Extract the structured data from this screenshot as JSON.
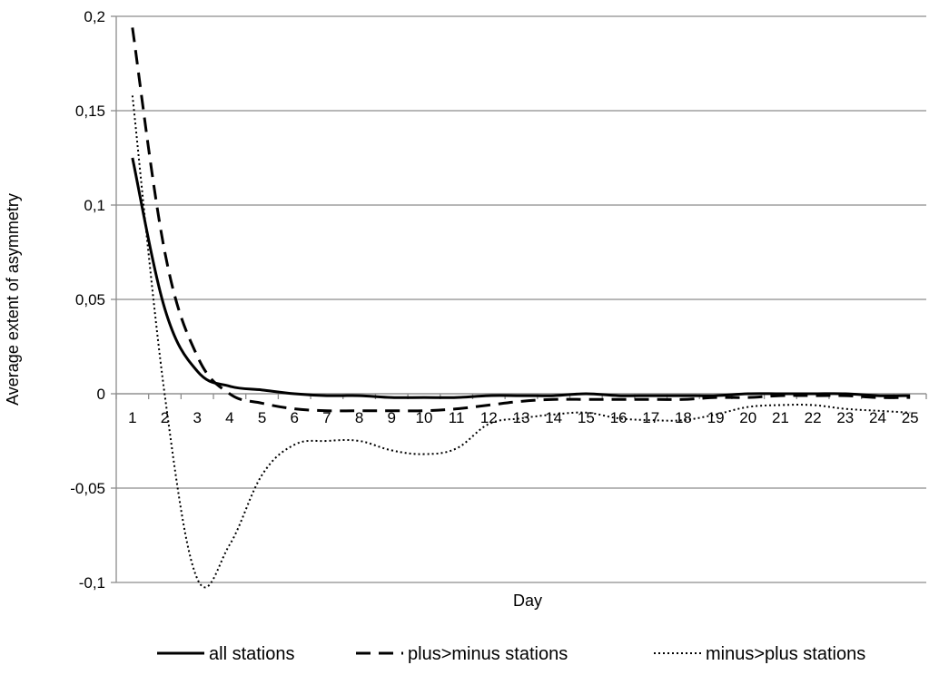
{
  "chart_data": {
    "type": "line",
    "title": "",
    "xlabel": "Day",
    "ylabel": "Average extent of asymmetry",
    "categories": [
      "1",
      "2",
      "3",
      "4",
      "5",
      "6",
      "7",
      "8",
      "9",
      "10",
      "11",
      "12",
      "13",
      "14",
      "15",
      "16",
      "17",
      "18",
      "19",
      "20",
      "21",
      "22",
      "23",
      "24",
      "25"
    ],
    "yticks": [
      "0,2",
      "0,15",
      "0,1",
      "0,05",
      "0",
      "-0,05",
      "-0,1"
    ],
    "ytick_values": [
      0.2,
      0.15,
      0.1,
      0.05,
      0,
      -0.05,
      -0.1
    ],
    "ylim": [
      -0.1,
      0.2
    ],
    "grid": true,
    "legend_position": "bottom",
    "series": [
      {
        "name": "all stations",
        "style": "solid",
        "values": [
          0.125,
          0.045,
          0.012,
          0.004,
          0.002,
          0.0,
          -0.001,
          -0.001,
          -0.002,
          -0.002,
          -0.002,
          -0.001,
          -0.001,
          -0.001,
          0.0,
          -0.001,
          -0.001,
          -0.001,
          -0.001,
          0.0,
          0.0,
          0.0,
          0.0,
          -0.001,
          -0.001
        ]
      },
      {
        "name": "plus>minus stations",
        "style": "dashed",
        "values": [
          0.194,
          0.075,
          0.02,
          0.0,
          -0.005,
          -0.008,
          -0.009,
          -0.009,
          -0.009,
          -0.009,
          -0.008,
          -0.006,
          -0.004,
          -0.003,
          -0.003,
          -0.003,
          -0.003,
          -0.003,
          -0.002,
          -0.002,
          -0.001,
          -0.001,
          -0.001,
          -0.002,
          -0.002
        ]
      },
      {
        "name": "minus>plus stations",
        "style": "dotted",
        "values": [
          0.158,
          -0.001,
          -0.098,
          -0.08,
          -0.043,
          -0.027,
          -0.025,
          -0.025,
          -0.03,
          -0.032,
          -0.029,
          -0.016,
          -0.013,
          -0.011,
          -0.01,
          -0.013,
          -0.014,
          -0.014,
          -0.011,
          -0.007,
          -0.006,
          -0.006,
          -0.008,
          -0.009,
          -0.01
        ]
      }
    ]
  }
}
